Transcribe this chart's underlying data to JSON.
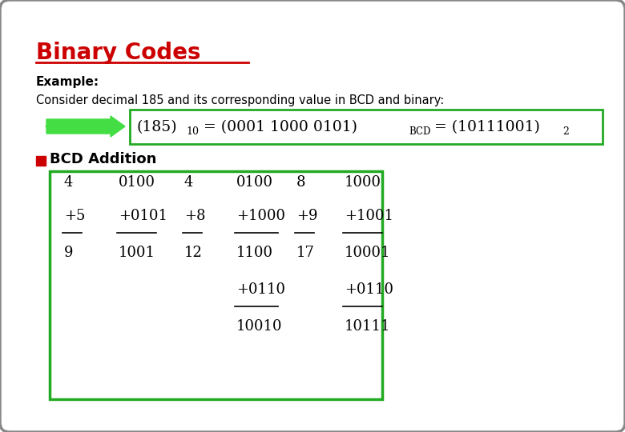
{
  "title": "Binary Codes",
  "title_color": "#CC0000",
  "background_color": "#FFFFFF",
  "border_color": "#888888",
  "example_label": "Example:",
  "consider_text": "Consider decimal 185 and its corresponding value in BCD and binary:",
  "bcd_addition_label": "BCD Addition",
  "arrow_color": "#44DD44",
  "formula_box_color": "#22AA22",
  "table_box_color": "#22AA22",
  "bcd_square_color": "#CC0000",
  "table_rows": [
    [
      "4",
      "0100",
      "4",
      "0100",
      "8",
      "1000"
    ],
    [
      "+5",
      "+0101",
      "+8",
      "+1000",
      "+9",
      "+1001"
    ],
    [
      "9",
      "1001",
      "12",
      "1100",
      "17",
      "10001"
    ],
    [
      "",
      "",
      "",
      "+0110",
      "",
      "+0110"
    ],
    [
      "",
      "",
      "",
      "10010",
      "",
      "10111"
    ]
  ],
  "figsize": [
    7.8,
    5.4
  ],
  "dpi": 100
}
